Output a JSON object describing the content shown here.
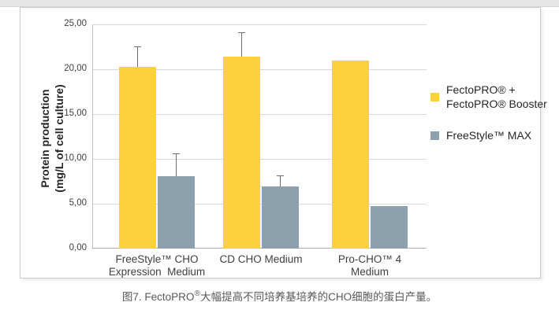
{
  "figure": {
    "caption": {
      "prefix": "图7. FectoPRO",
      "sup": "®",
      "suffix": "大幅提高不同培养基培养的CHO细胞的蛋白产量。"
    }
  },
  "chart_data": {
    "type": "bar",
    "title": "",
    "ylabel_lines": [
      "Protein production",
      "(mg/L of cell culture)"
    ],
    "ylabel": "Protein production (mg/L of cell culture)",
    "xlabel": "",
    "ylim": [
      0,
      25
    ],
    "ytick_step": 5,
    "ytick_labels": [
      "0,00",
      "5,00",
      "10,00",
      "15,00",
      "20,00",
      "25,00"
    ],
    "grid": true,
    "legend_position": "right",
    "categories": [
      {
        "lines": [
          "FreeStyle™ CHO",
          "Expression  Medium"
        ]
      },
      {
        "lines": [
          "CD CHO Medium"
        ]
      },
      {
        "lines": [
          "Pro-CHO™ 4",
          "Medium"
        ]
      }
    ],
    "series": [
      {
        "name": "FectoPRO® + FectoPRO® Booster",
        "name_lines": [
          "FectoPRO® +",
          "FectoPRO® Booster"
        ],
        "color": "#FBD23E",
        "values": [
          20.3,
          21.4,
          21.0
        ],
        "errors_plus": [
          2.2,
          2.6,
          0
        ]
      },
      {
        "name": "FreeStyle™ MAX",
        "name_lines": [
          "FreeStyle™ MAX"
        ],
        "color": "#8CA1AD",
        "values": [
          8.1,
          6.9,
          4.7
        ],
        "errors_plus": [
          2.4,
          1.2,
          0
        ]
      }
    ],
    "colors": {
      "gridline": "#D9D9D9",
      "axis": "#ABABAB",
      "error_bar": "#6E6E6E",
      "tick_text": "#3F3F3F",
      "caption_text": "#595959"
    }
  }
}
